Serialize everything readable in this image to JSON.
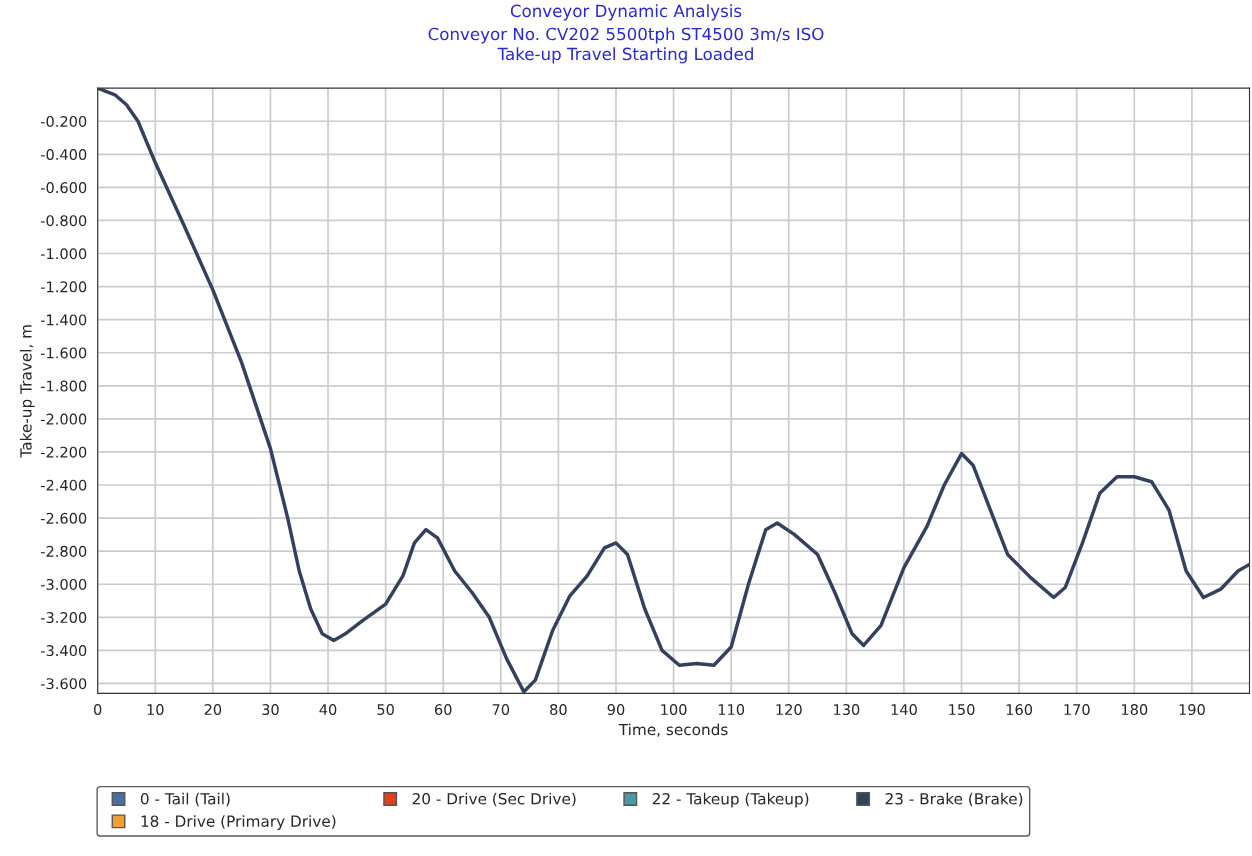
{
  "chart_data": {
    "type": "line",
    "title": "Conveyor Dynamic Analysis",
    "subtitle": "Conveyor No. CV202 5500tph ST4500 3m/s ISO\nTake-up Travel Starting Loaded",
    "xlabel": "Time, seconds",
    "ylabel": "Take-up Travel, m",
    "x": [
      0,
      3,
      5,
      7,
      10,
      15,
      20,
      25,
      30,
      33,
      35,
      37,
      39,
      41,
      43,
      46,
      50,
      53,
      55,
      57,
      59,
      62,
      65,
      68,
      71,
      74,
      76,
      79,
      82,
      85,
      88,
      90,
      92,
      95,
      98,
      101,
      104,
      107,
      110,
      113,
      116,
      118,
      121,
      125,
      128,
      131,
      133,
      136,
      140,
      144,
      147,
      150,
      152,
      155,
      158,
      162,
      166,
      168,
      171,
      174,
      177,
      180,
      183,
      186,
      189,
      192,
      195,
      198,
      200
    ],
    "series": [
      {
        "name": "0 - Tail (Tail)",
        "color": "#4a6fa5",
        "values": [
          null,
          null,
          null,
          null,
          null,
          null,
          null,
          null,
          null,
          null,
          null,
          null,
          null,
          null,
          null,
          null,
          null,
          null,
          null,
          null,
          null,
          null,
          null,
          null,
          null,
          null,
          null,
          null,
          null,
          null,
          null,
          null,
          null,
          null,
          null,
          null,
          null,
          null,
          null,
          null,
          null,
          null,
          null,
          null,
          null,
          null,
          null,
          null,
          null,
          null,
          null,
          null,
          null,
          null,
          null,
          null,
          null,
          null,
          null,
          null,
          null,
          null,
          null,
          null,
          null,
          null,
          null,
          null,
          null
        ]
      },
      {
        "name": "18 - Drive (Primary Drive)",
        "color": "#f0a030",
        "values": [
          null,
          null,
          null,
          null,
          null,
          null,
          null,
          null,
          null,
          null,
          null,
          null,
          null,
          null,
          null,
          null,
          null,
          null,
          null,
          null,
          null,
          null,
          null,
          null,
          null,
          null,
          null,
          null,
          null,
          null,
          null,
          null,
          null,
          null,
          null,
          null,
          null,
          null,
          null,
          null,
          null,
          null,
          null,
          null,
          null,
          null,
          null,
          null,
          null,
          null,
          null,
          null,
          null,
          null,
          null,
          null,
          null,
          null,
          null,
          null,
          null,
          null,
          null,
          null,
          null,
          null,
          null,
          null,
          null
        ]
      },
      {
        "name": "20 - Drive (Sec Drive)",
        "color": "#e0401a",
        "values": [
          null,
          null,
          null,
          null,
          null,
          null,
          null,
          null,
          null,
          null,
          null,
          null,
          null,
          null,
          null,
          null,
          null,
          null,
          null,
          null,
          null,
          null,
          null,
          null,
          null,
          null,
          null,
          null,
          null,
          null,
          null,
          null,
          null,
          null,
          null,
          null,
          null,
          null,
          null,
          null,
          null,
          null,
          null,
          null,
          null,
          null,
          null,
          null,
          null,
          null,
          null,
          null,
          null,
          null,
          null,
          null,
          null,
          null,
          null,
          null,
          null,
          null,
          null,
          null,
          null,
          null,
          null,
          null,
          null
        ]
      },
      {
        "name": "22 - Takeup (Takeup)",
        "color": "#4a9aa5",
        "values": [
          null,
          null,
          null,
          null,
          null,
          null,
          null,
          null,
          null,
          null,
          null,
          null,
          null,
          null,
          null,
          null,
          null,
          null,
          null,
          null,
          null,
          null,
          null,
          null,
          null,
          null,
          null,
          null,
          null,
          null,
          null,
          null,
          null,
          null,
          null,
          null,
          null,
          null,
          null,
          null,
          null,
          null,
          null,
          null,
          null,
          null,
          null,
          null,
          null,
          null,
          null,
          null,
          null,
          null,
          null,
          null,
          null,
          null,
          null,
          null,
          null,
          null,
          null,
          null,
          null,
          null,
          null,
          null,
          null
        ]
      },
      {
        "name": "23 - Brake (Brake)",
        "color": "#34405f",
        "values": [
          0.0,
          -0.04,
          -0.1,
          -0.2,
          -0.45,
          -0.83,
          -1.22,
          -1.66,
          -2.18,
          -2.6,
          -2.92,
          -3.15,
          -3.3,
          -3.34,
          -3.3,
          -3.22,
          -3.12,
          -2.95,
          -2.75,
          -2.67,
          -2.72,
          -2.92,
          -3.05,
          -3.2,
          -3.45,
          -3.65,
          -3.58,
          -3.28,
          -3.07,
          -2.95,
          -2.78,
          -2.75,
          -2.82,
          -3.15,
          -3.4,
          -3.49,
          -3.48,
          -3.49,
          -3.38,
          -3.0,
          -2.67,
          -2.63,
          -2.7,
          -2.82,
          -3.05,
          -3.3,
          -3.37,
          -3.25,
          -2.9,
          -2.65,
          -2.4,
          -2.21,
          -2.28,
          -2.55,
          -2.82,
          -2.96,
          -3.08,
          -3.02,
          -2.75,
          -2.45,
          -2.35,
          -2.35,
          -2.38,
          -2.55,
          -2.92,
          -3.08,
          -3.03,
          -2.92,
          -2.88
        ]
      }
    ],
    "xlim": [
      0,
      200
    ],
    "xticks": [
      0,
      10,
      20,
      30,
      40,
      50,
      60,
      70,
      80,
      90,
      100,
      110,
      120,
      130,
      140,
      150,
      160,
      170,
      180,
      190
    ],
    "ylim": [
      -3.66,
      0
    ],
    "yticks": [
      {
        "value": -0.2,
        "label": "-0.200"
      },
      {
        "value": -0.4,
        "label": "-0.400"
      },
      {
        "value": -0.6,
        "label": "-0.600"
      },
      {
        "value": -0.8,
        "label": "-0.800"
      },
      {
        "value": -1.0,
        "label": "-1.000"
      },
      {
        "value": -1.2,
        "label": "-1.200"
      },
      {
        "value": -1.4,
        "label": "-1.400"
      },
      {
        "value": -1.6,
        "label": "-1.600"
      },
      {
        "value": -1.8,
        "label": "-1.800"
      },
      {
        "value": -2.0,
        "label": "-2.000"
      },
      {
        "value": -2.2,
        "label": "-2.200"
      },
      {
        "value": -2.4,
        "label": "-2.400"
      },
      {
        "value": -2.6,
        "label": "-2.600"
      },
      {
        "value": -2.8,
        "label": "-2.800"
      },
      {
        "value": -3.0,
        "label": "-3.000"
      },
      {
        "value": -3.2,
        "label": "-3.200"
      },
      {
        "value": -3.4,
        "label": "-3.400"
      },
      {
        "value": -3.6,
        "label": "-3.600"
      }
    ],
    "grid": true,
    "legend": "bottom",
    "marker": "none",
    "line_style": "solid"
  }
}
